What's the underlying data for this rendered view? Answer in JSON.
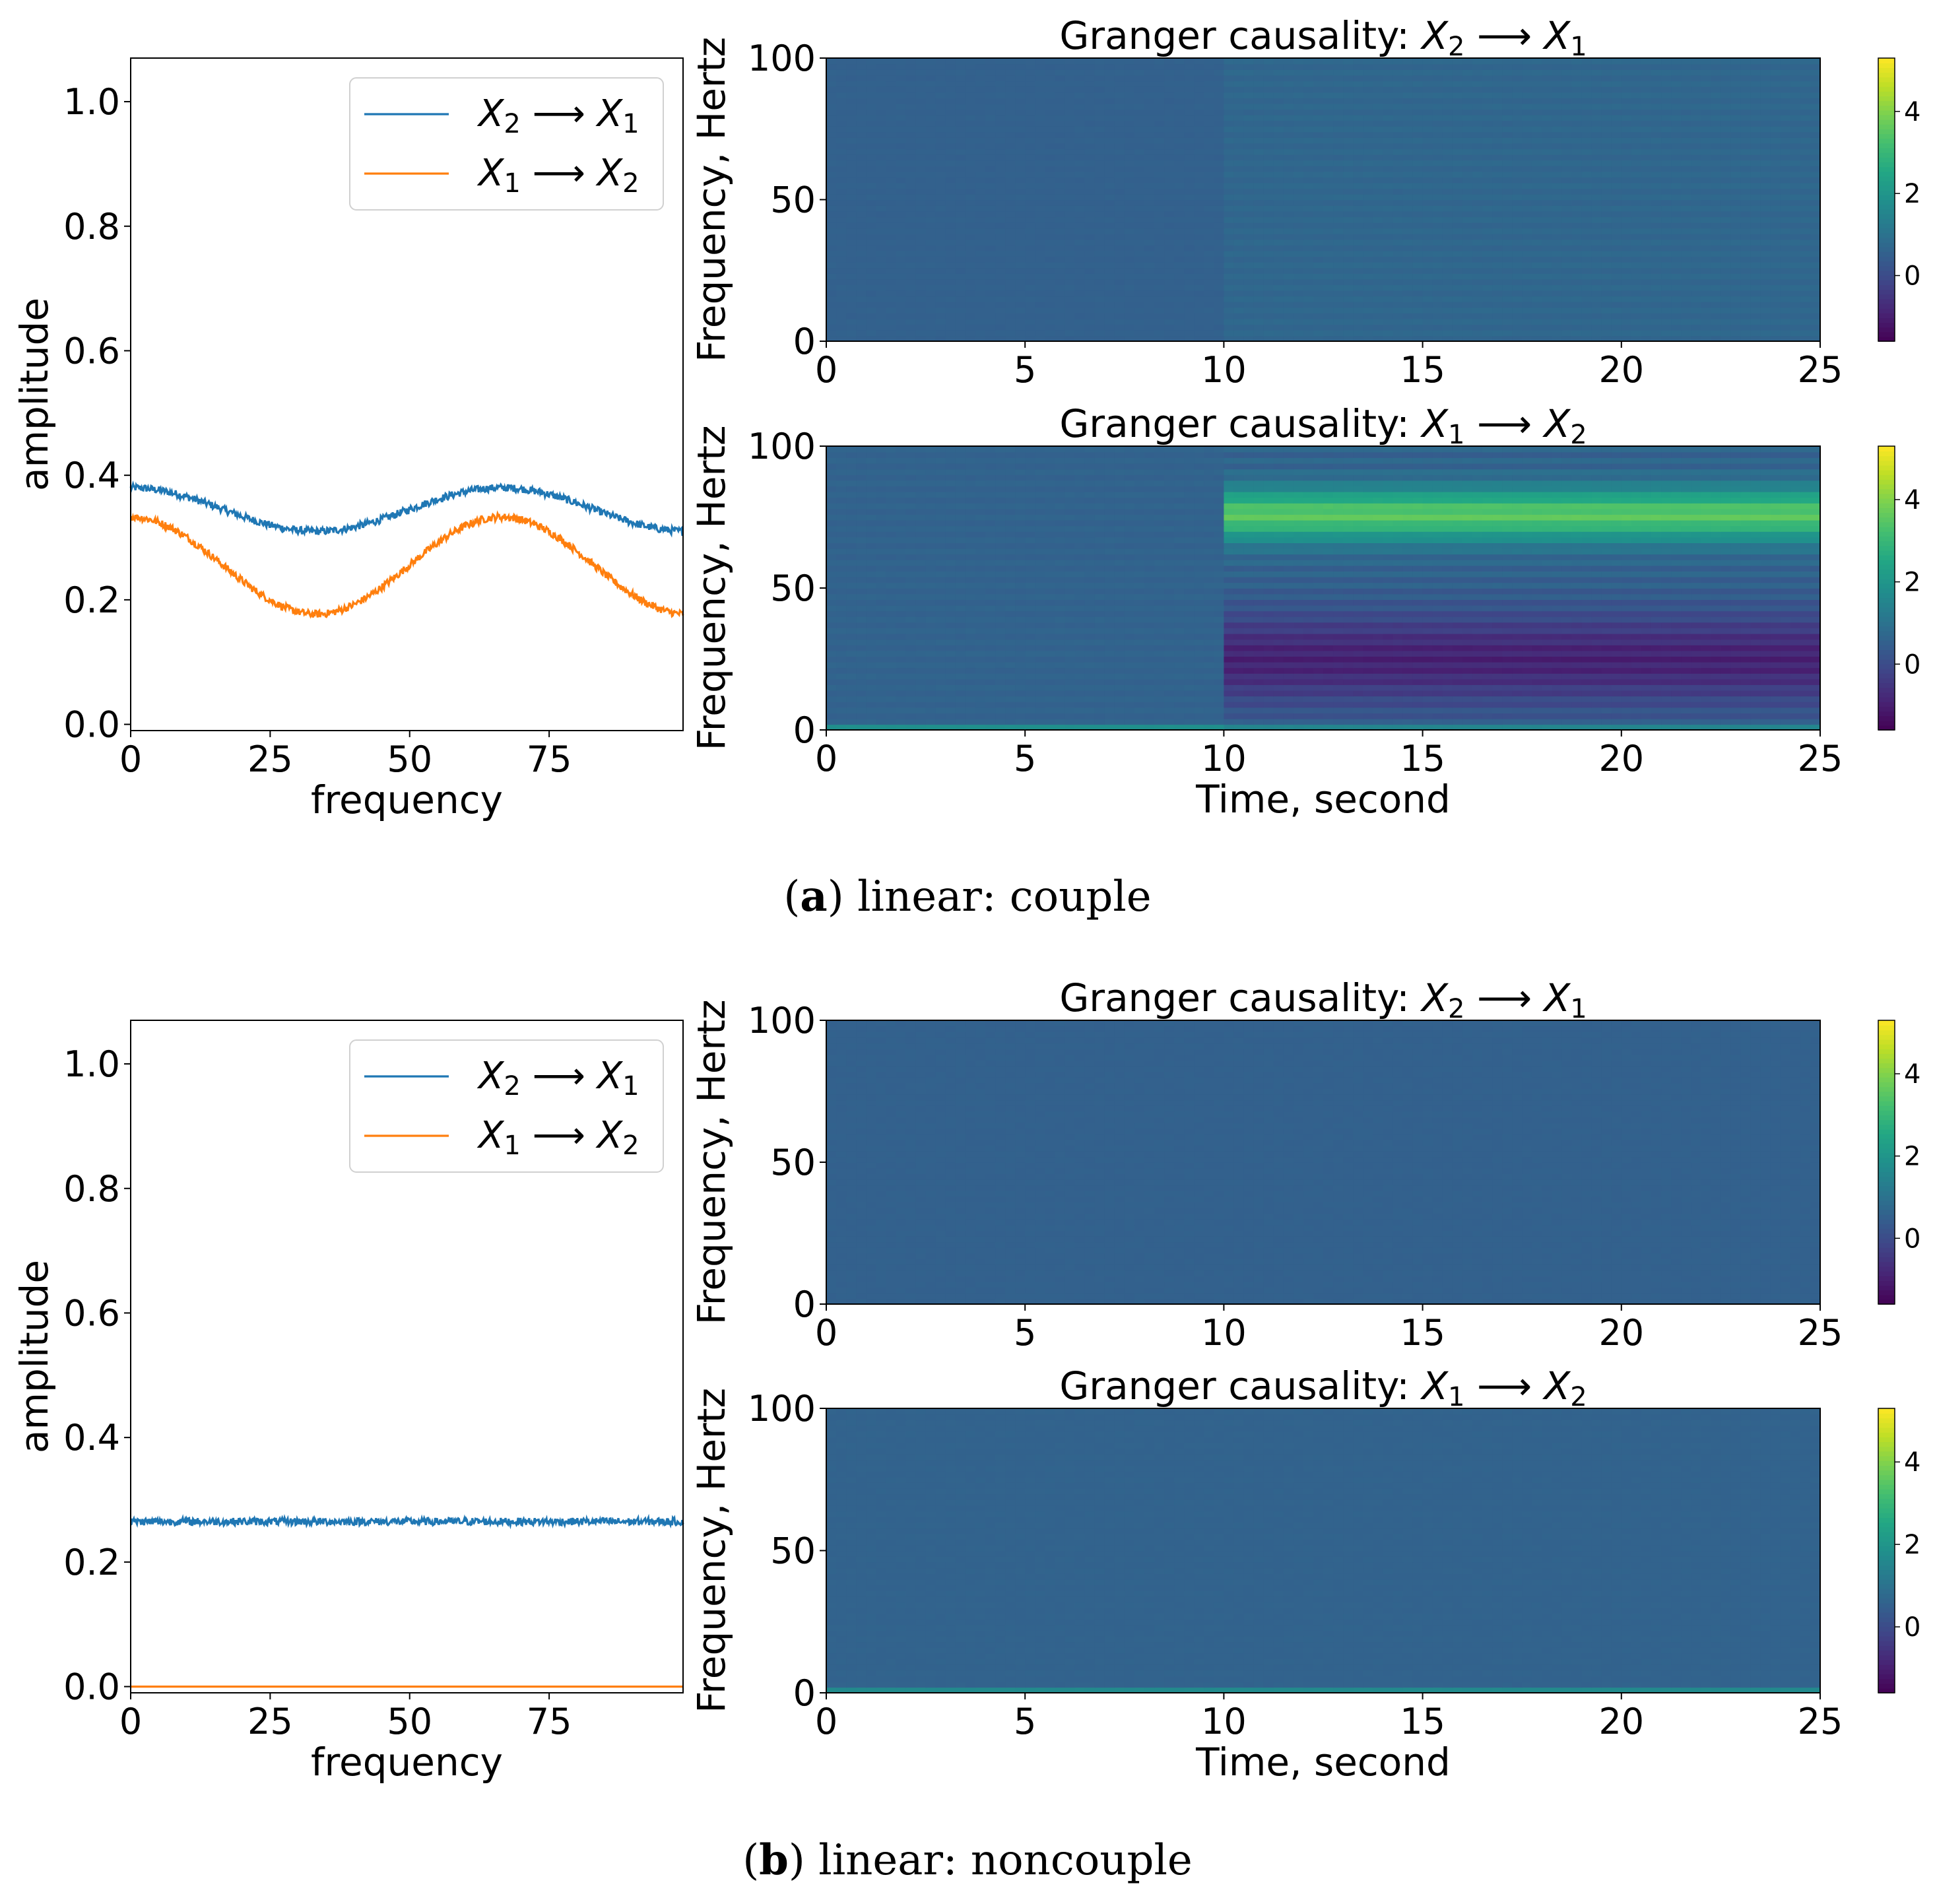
{
  "chart_data": [
    {
      "panel": "a",
      "caption": {
        "letter": "a",
        "text": "linear: couple"
      },
      "spectrum": {
        "type": "line",
        "xlabel": "frequency",
        "ylabel": "amplitude",
        "xlim": [
          0,
          99
        ],
        "ylim": [
          -0.01,
          1.07
        ],
        "xticks": [
          "0",
          "25",
          "50",
          "75"
        ],
        "yticks": [
          "0.0",
          "0.2",
          "0.4",
          "0.6",
          "0.8",
          "1.0"
        ],
        "legend_position": "top-right",
        "series": [
          {
            "name": "X2 ⟶ X1",
            "legend": {
              "a": "X",
              "a_sub": "2",
              "arrow": "⟶",
              "b": "X",
              "b_sub": "1"
            },
            "color": "#1f77b4",
            "model": {
              "base": 0.345,
              "amp": 0.035,
              "phase": 1.0,
              "noise": 0.006
            }
          },
          {
            "name": "X1 ⟶ X2",
            "legend": {
              "a": "X",
              "a_sub": "1",
              "arrow": "⟶",
              "b": "X",
              "b_sub": "2"
            },
            "color": "#ff7f0e",
            "model": {
              "base": 0.255,
              "amp": 0.078,
              "phase": 1.0,
              "noise": 0.006
            }
          }
        ]
      },
      "heatmaps": [
        {
          "type": "heatmap",
          "title": {
            "prefix": "Granger causality: ",
            "a": "X",
            "a_sub": "2",
            "arrow": "⟶",
            "b": "X",
            "b_sub": "1"
          },
          "ylabel": "Frequency, Hertz",
          "xlabel": "",
          "xlim": [
            0,
            25
          ],
          "ylim": [
            0,
            100
          ],
          "xticks": [
            "0",
            "5",
            "10",
            "15",
            "20",
            "25"
          ],
          "yticks": [
            "0",
            "50",
            "100"
          ],
          "colorbar_ticks": [
            "0",
            "2",
            "4"
          ],
          "clim": [
            -1.6,
            5.3
          ],
          "model": {
            "base": 0.55,
            "switch_time": 10,
            "after_boost": 0.15,
            "high_band": 0,
            "low_dip": 0,
            "bottom_row": 0,
            "stripes": 0.06
          }
        },
        {
          "type": "heatmap",
          "title": {
            "prefix": "Granger causality: ",
            "a": "X",
            "a_sub": "1",
            "arrow": "⟶",
            "b": "X",
            "b_sub": "2"
          },
          "ylabel": "Frequency, Hertz",
          "xlabel": "Time, second",
          "xlim": [
            0,
            25
          ],
          "ylim": [
            0,
            100
          ],
          "xticks": [
            "0",
            "5",
            "10",
            "15",
            "20",
            "25"
          ],
          "yticks": [
            "0",
            "50",
            "100"
          ],
          "colorbar_ticks": [
            "0",
            "2",
            "4"
          ],
          "clim": [
            -1.6,
            5.3
          ],
          "model": {
            "base": 0.6,
            "switch_time": 10,
            "after_boost": 0,
            "high_band": 2.9,
            "low_dip": 1.5,
            "bottom_row": 1.3,
            "stripes": 0.18
          }
        }
      ]
    },
    {
      "panel": "b",
      "caption": {
        "letter": "b",
        "text": "linear: noncouple"
      },
      "spectrum": {
        "type": "line",
        "xlabel": "frequency",
        "ylabel": "amplitude",
        "xlim": [
          0,
          99
        ],
        "ylim": [
          -0.01,
          1.07
        ],
        "xticks": [
          "0",
          "25",
          "50",
          "75"
        ],
        "yticks": [
          "0.0",
          "0.2",
          "0.4",
          "0.6",
          "0.8",
          "1.0"
        ],
        "legend_position": "top-right",
        "series": [
          {
            "name": "X2 ⟶ X1",
            "legend": {
              "a": "X",
              "a_sub": "2",
              "arrow": "⟶",
              "b": "X",
              "b_sub": "1"
            },
            "color": "#1f77b4",
            "model": {
              "base": 0.265,
              "amp": 0,
              "phase": 0,
              "noise": 0.006
            }
          },
          {
            "name": "X1 ⟶ X2",
            "legend": {
              "a": "X",
              "a_sub": "1",
              "arrow": "⟶",
              "b": "X",
              "b_sub": "2"
            },
            "color": "#ff7f0e",
            "model": {
              "base": 0.0,
              "amp": 0,
              "phase": 0,
              "noise": 0
            }
          }
        ]
      },
      "heatmaps": [
        {
          "type": "heatmap",
          "title": {
            "prefix": "Granger causality: ",
            "a": "X",
            "a_sub": "2",
            "arrow": "⟶",
            "b": "X",
            "b_sub": "1"
          },
          "ylabel": "Frequency, Hertz",
          "xlabel": "",
          "xlim": [
            0,
            25
          ],
          "ylim": [
            0,
            100
          ],
          "xticks": [
            "0",
            "5",
            "10",
            "15",
            "20",
            "25"
          ],
          "yticks": [
            "0",
            "50",
            "100"
          ],
          "colorbar_ticks": [
            "0",
            "2",
            "4"
          ],
          "clim": [
            -1.6,
            5.3
          ],
          "model": {
            "base": 0.55,
            "switch_time": 25,
            "after_boost": 0,
            "high_band": 0,
            "low_dip": 0,
            "bottom_row": 0,
            "stripes": 0.02
          }
        },
        {
          "type": "heatmap",
          "title": {
            "prefix": "Granger causality: ",
            "a": "X",
            "a_sub": "1",
            "arrow": "⟶",
            "b": "X",
            "b_sub": "2"
          },
          "ylabel": "Frequency, Hertz",
          "xlabel": "Time, second",
          "xlim": [
            0,
            25
          ],
          "ylim": [
            0,
            100
          ],
          "xticks": [
            "0",
            "5",
            "10",
            "15",
            "20",
            "25"
          ],
          "yticks": [
            "0",
            "50",
            "100"
          ],
          "colorbar_ticks": [
            "0",
            "2",
            "4"
          ],
          "clim": [
            -1.6,
            5.3
          ],
          "model": {
            "base": 0.6,
            "switch_time": 25,
            "after_boost": 0,
            "high_band": 0,
            "low_dip": 0,
            "bottom_row": 1.1,
            "stripes": 0.03
          }
        }
      ]
    }
  ]
}
